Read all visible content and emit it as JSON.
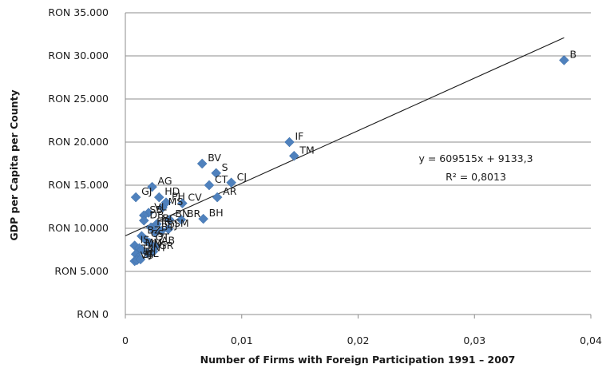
{
  "chart_data": {
    "type": "scatter",
    "title": "",
    "xlabel": "Number of Firms with Foreign Participation  1991 – 2007",
    "ylabel": "GDP per Capita per County",
    "xlim": [
      0,
      0.04
    ],
    "ylim": [
      0,
      35000
    ],
    "x_ticks": [
      {
        "value": 0,
        "label": "0"
      },
      {
        "value": 0.01,
        "label": "0,01"
      },
      {
        "value": 0.02,
        "label": "0,02"
      },
      {
        "value": 0.03,
        "label": "0,03"
      },
      {
        "value": 0.04,
        "label": "0,04"
      }
    ],
    "y_ticks": [
      {
        "value": 0,
        "label": "RON 0"
      },
      {
        "value": 5000,
        "label": "RON 5.000"
      },
      {
        "value": 10000,
        "label": "RON 10.000"
      },
      {
        "value": 15000,
        "label": "RON 15.000"
      },
      {
        "value": 20000,
        "label": "RON 20.000"
      },
      {
        "value": 25000,
        "label": "RON 25.000"
      },
      {
        "value": 30000,
        "label": "RON 30.000"
      },
      {
        "value": 35000,
        "label": "RON 35.000"
      }
    ],
    "grid": "horizontal",
    "marker_color": "#4F81BD",
    "trendline_color": "#1a1a1a",
    "trendline": {
      "slope": 609515,
      "intercept": 9133.3,
      "x_range": [
        0,
        0.0377
      ],
      "equation": "y = 609515x + 9133,3",
      "r_squared": "R² = 0,8013"
    },
    "points": [
      {
        "x": 0.0377,
        "y": 29500,
        "label": "B"
      },
      {
        "x": 0.0141,
        "y": 20000,
        "label": "IF"
      },
      {
        "x": 0.0145,
        "y": 18400,
        "label": "TM"
      },
      {
        "x": 0.0066,
        "y": 17500,
        "label": "BV"
      },
      {
        "x": 0.0078,
        "y": 16400,
        "label": "S"
      },
      {
        "x": 0.0072,
        "y": 15000,
        "label": "CT"
      },
      {
        "x": 0.0091,
        "y": 15300,
        "label": "CJ"
      },
      {
        "x": 0.0079,
        "y": 13600,
        "label": "AR"
      },
      {
        "x": 0.0067,
        "y": 11100,
        "label": "BH"
      },
      {
        "x": 0.0023,
        "y": 14800,
        "label": "AG"
      },
      {
        "x": 0.0009,
        "y": 13600,
        "label": "GJ"
      },
      {
        "x": 0.0029,
        "y": 13600,
        "label": "HD"
      },
      {
        "x": 0.0035,
        "y": 13000,
        "label": "PH"
      },
      {
        "x": 0.0049,
        "y": 12900,
        "label": "CV"
      },
      {
        "x": 0.0032,
        "y": 12400,
        "label": "MS"
      },
      {
        "x": 0.002,
        "y": 11800,
        "label": "VL"
      },
      {
        "x": 0.0016,
        "y": 11500,
        "label": "SB"
      },
      {
        "x": 0.0038,
        "y": 11000,
        "label": "BN"
      },
      {
        "x": 0.0048,
        "y": 11000,
        "label": "BR"
      },
      {
        "x": 0.0016,
        "y": 10900,
        "label": "DB"
      },
      {
        "x": 0.0027,
        "y": 10500,
        "label": "BC"
      },
      {
        "x": 0.0022,
        "y": 10100,
        "label": "HR"
      },
      {
        "x": 0.0037,
        "y": 9900,
        "label": "SM"
      },
      {
        "x": 0.0031,
        "y": 9700,
        "label": "DJ"
      },
      {
        "x": 0.0026,
        "y": 9500,
        "label": "BT"
      },
      {
        "x": 0.0014,
        "y": 9100,
        "label": "BZ"
      },
      {
        "x": 0.0017,
        "y": 8700,
        "label": "CS"
      },
      {
        "x": 0.0021,
        "y": 8300,
        "label": "OT"
      },
      {
        "x": 0.0008,
        "y": 8000,
        "label": "IS"
      },
      {
        "x": 0.0026,
        "y": 7900,
        "label": "AB"
      },
      {
        "x": 0.0012,
        "y": 7700,
        "label": "MM"
      },
      {
        "x": 0.0014,
        "y": 7500,
        "label": "VN"
      },
      {
        "x": 0.0024,
        "y": 7300,
        "label": "GR"
      },
      {
        "x": 0.0019,
        "y": 7100,
        "label": "NT"
      },
      {
        "x": 0.0009,
        "y": 7000,
        "label": "TR"
      },
      {
        "x": 0.0011,
        "y": 6600,
        "label": "TL"
      },
      {
        "x": 0.0008,
        "y": 6200,
        "label": "VS"
      },
      {
        "x": 0.001,
        "y": 6300,
        "label": "SJ"
      },
      {
        "x": 0.0013,
        "y": 6400,
        "label": "CL"
      }
    ]
  }
}
